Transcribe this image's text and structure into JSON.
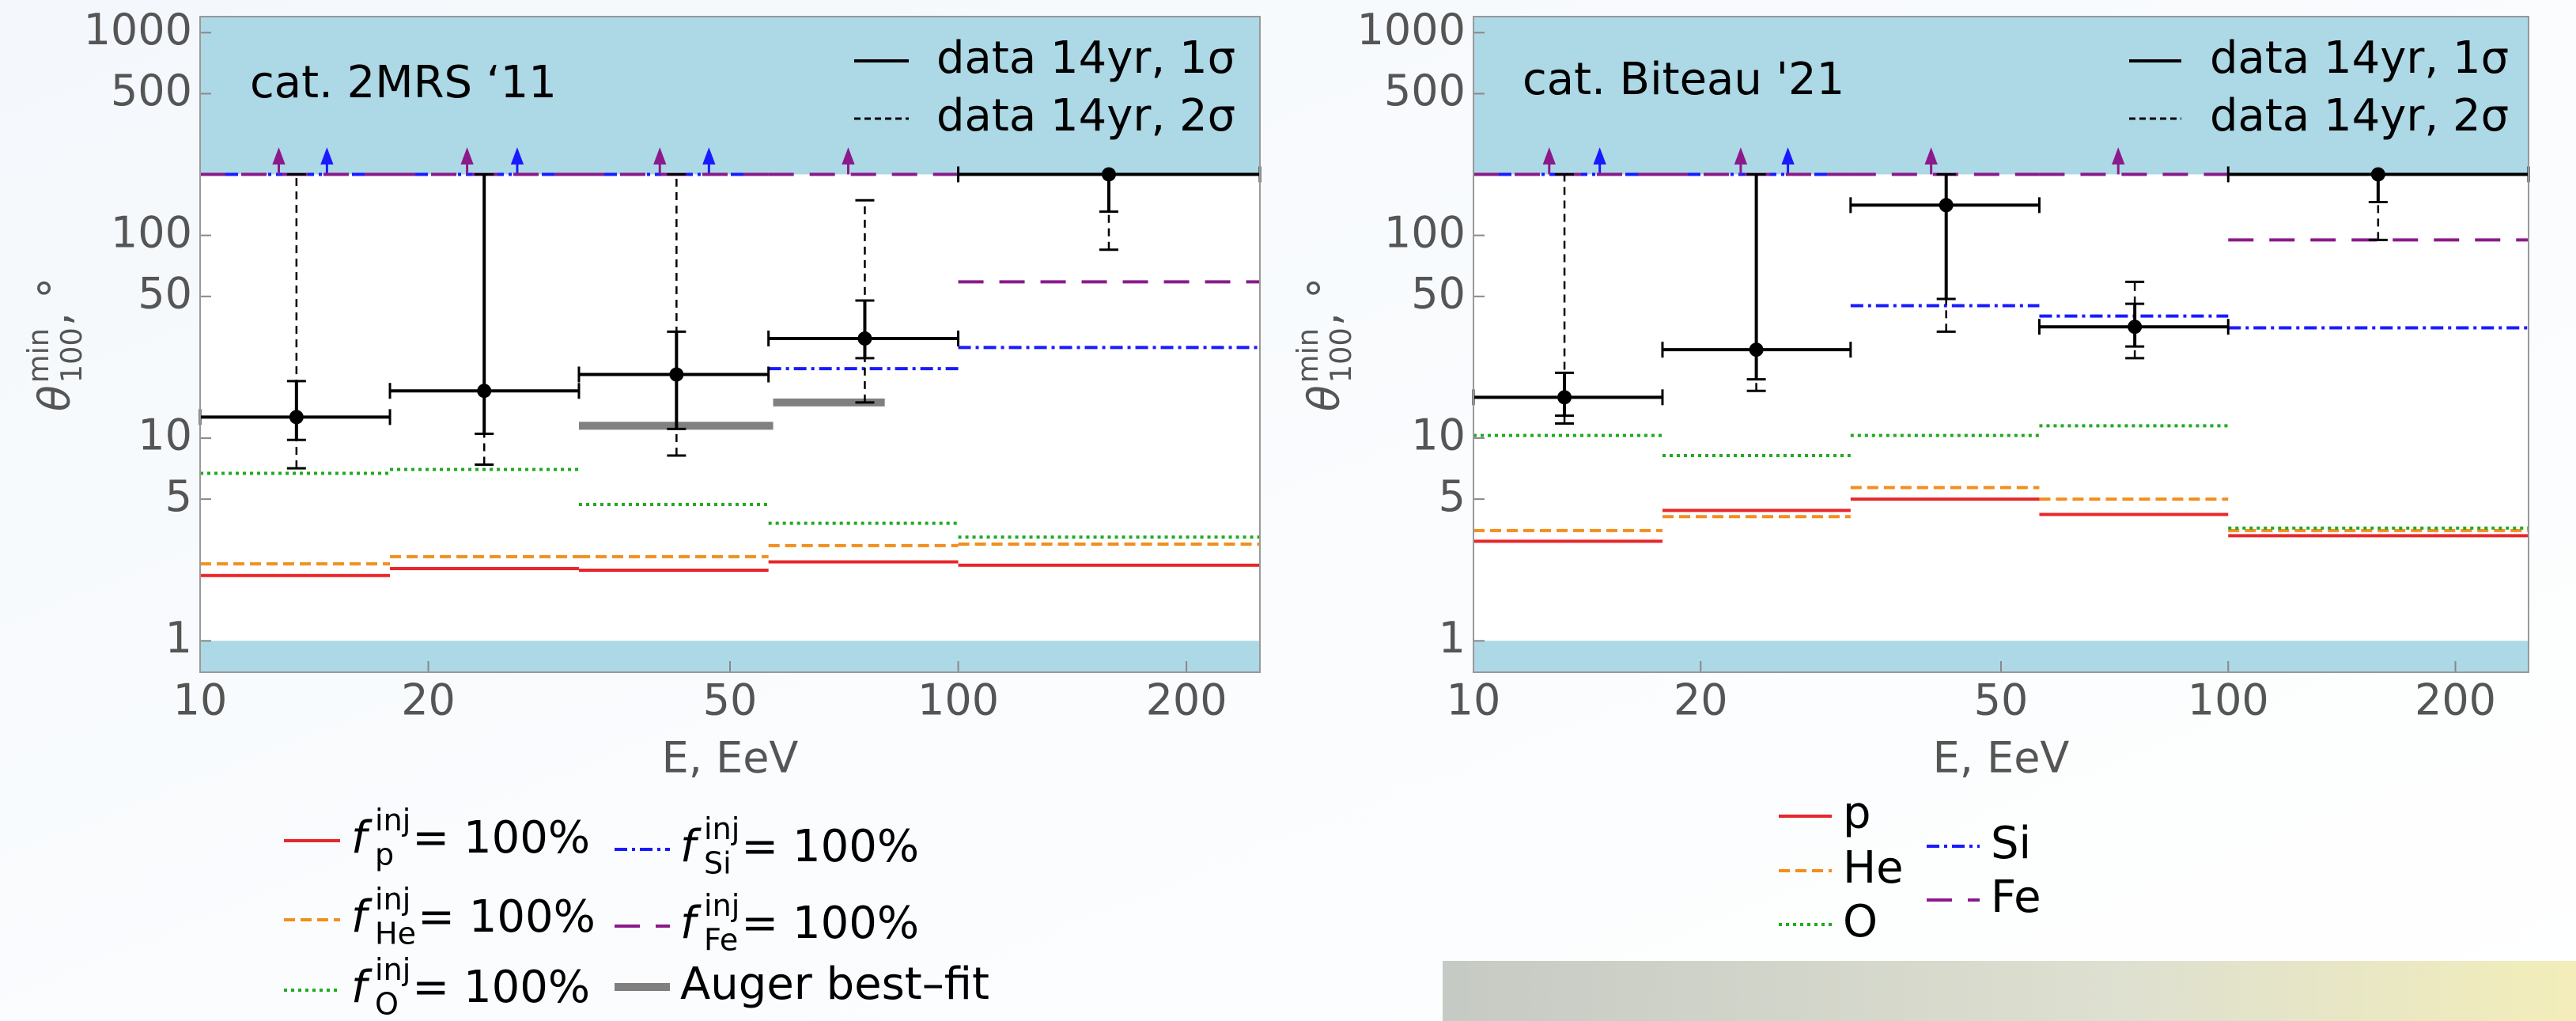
{
  "chart_data": [
    {
      "type": "step",
      "annotation": "cat. 2MRS ‘11",
      "x_label": "E, EeV",
      "y_label": {
        "symbol": "θ",
        "sup": "min",
        "sub": "100",
        "suffix": ", °"
      },
      "log_x": true,
      "log_y": true,
      "xlim": [
        10,
        250
      ],
      "ylim": [
        0.7,
        1200
      ],
      "xticks": [
        10,
        20,
        50,
        100,
        200
      ],
      "yticks": [
        1,
        5,
        10,
        50,
        100,
        500,
        1000
      ],
      "shaded_bands": [
        [
          200,
          1200
        ],
        [
          0.7,
          1
        ]
      ],
      "band_color": "#add8e6",
      "bin_edges": [
        10,
        17.8,
        31.6,
        56.2,
        100,
        250
      ],
      "series": [
        {
          "name": {
            "symbol": "f",
            "sup": "inj",
            "sub": "p",
            "suffix": " = 100%"
          },
          "color": "#e8262b",
          "dash": "solid",
          "values": [
            2.1,
            2.27,
            2.23,
            2.45,
            2.36
          ]
        },
        {
          "name": {
            "symbol": "f",
            "sup": "inj",
            "sub": "He",
            "suffix": " = 100%"
          },
          "color": "#f28e1c",
          "dash": "dashed",
          "values": [
            2.4,
            2.6,
            2.6,
            2.95,
            3.0
          ]
        },
        {
          "name": {
            "symbol": "f",
            "sup": "inj",
            "sub": "O",
            "suffix": " = 100%"
          },
          "color": "#22aa22",
          "dash": "dotted",
          "values": [
            6.7,
            7.0,
            4.7,
            3.8,
            3.25
          ]
        },
        {
          "name": {
            "symbol": "f",
            "sup": "inj",
            "sub": "Si",
            "suffix": " = 100%"
          },
          "color": "#1a1aff",
          "dash": "dashdot",
          "values": [
            200,
            200,
            200,
            22,
            28
          ],
          "arrows_x": [
            14.7,
            26.2,
            46.9
          ]
        },
        {
          "name": {
            "symbol": "f",
            "sup": "inj",
            "sub": "Fe",
            "suffix": " = 100%"
          },
          "color": "#8b1a8b",
          "dash": "longdash",
          "values": [
            200,
            200,
            200,
            200,
            59
          ],
          "arrows_x": [
            12.7,
            22.5,
            40.4,
            71.6
          ]
        },
        {
          "name": "Auger best–fit",
          "color": "#808080",
          "dash": "thick",
          "segments_x": [
            [
              31.6,
              57
            ],
            [
              57,
              80
            ]
          ],
          "values": [
            11.5,
            15
          ]
        }
      ],
      "data": {
        "color": "#000000",
        "x": [
          13.4,
          23.7,
          42.5,
          75.3,
          158
        ],
        "values": [
          12.7,
          17.1,
          20.6,
          31,
          200
        ],
        "sigma1": {
          "name": "data 14yr, 1σ",
          "lo": [
            9.8,
            10.5,
            11.1,
            24.8,
            131
          ],
          "hi": [
            19.1,
            200,
            33.5,
            47.7,
            200
          ]
        },
        "sigma2": {
          "name": "data 14yr, 2σ",
          "lo": [
            7.1,
            7.4,
            8.2,
            15.0,
            85
          ],
          "hi": [
            200,
            200,
            200,
            149,
            200
          ]
        }
      }
    },
    {
      "type": "step",
      "annotation": "cat. Biteau '21",
      "x_label": "E, EeV",
      "y_label": {
        "symbol": "θ",
        "sup": "min",
        "sub": "100",
        "suffix": ", °"
      },
      "log_x": true,
      "log_y": true,
      "xlim": [
        10,
        250
      ],
      "ylim": [
        0.7,
        1200
      ],
      "xticks": [
        10,
        20,
        50,
        100,
        200
      ],
      "yticks": [
        1,
        5,
        10,
        50,
        100,
        500,
        1000
      ],
      "shaded_bands": [
        [
          200,
          1200
        ],
        [
          0.7,
          1
        ]
      ],
      "band_color": "#add8e6",
      "bin_edges": [
        10,
        17.8,
        31.6,
        56.2,
        100,
        250
      ],
      "series": [
        {
          "name": "p",
          "color": "#e8262b",
          "dash": "solid",
          "values": [
            3.1,
            4.4,
            5.0,
            4.2,
            3.3
          ]
        },
        {
          "name": "He",
          "color": "#f28e1c",
          "dash": "dashed",
          "values": [
            3.5,
            4.1,
            5.7,
            5.0,
            3.5
          ]
        },
        {
          "name": "O",
          "color": "#22aa22",
          "dash": "dotted",
          "values": [
            10.3,
            8.2,
            10.3,
            11.5,
            3.6
          ]
        },
        {
          "name": "Si",
          "color": "#1a1aff",
          "dash": "dashdot",
          "values": [
            200,
            200,
            45,
            40,
            35
          ],
          "arrows_x": [
            14.7,
            26.1
          ]
        },
        {
          "name": "Fe",
          "color": "#8b1a8b",
          "dash": "longdash",
          "values": [
            200,
            200,
            200,
            200,
            95
          ],
          "arrows_x": [
            12.6,
            22.6,
            40.4,
            71.5
          ]
        }
      ],
      "data": {
        "color": "#000000",
        "x": [
          13.2,
          23.7,
          42.3,
          75.2,
          158
        ],
        "values": [
          15.9,
          27.3,
          141,
          35.4,
          200
        ],
        "sigma1": {
          "name": "data 14yr, 1σ",
          "lo": [
            12.9,
            19.5,
            48.6,
            28.3,
            146
          ],
          "hi": [
            21,
            200,
            200,
            46,
            200
          ]
        },
        "sigma2": {
          "name": "data 14yr, 2σ",
          "lo": [
            11.8,
            17.1,
            33.5,
            24.8,
            95
          ],
          "hi": [
            200,
            200,
            200,
            59,
            200
          ]
        }
      }
    }
  ]
}
